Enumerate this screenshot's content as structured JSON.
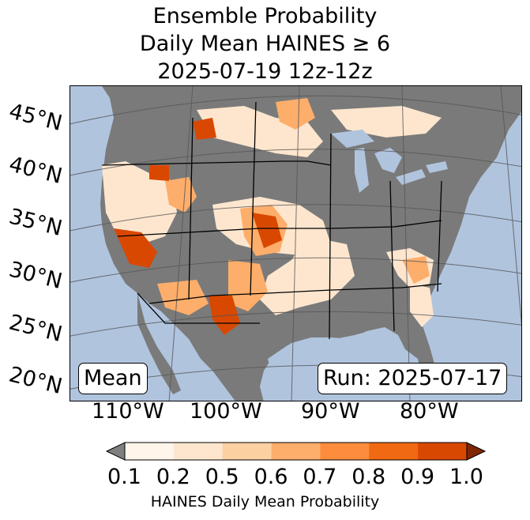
{
  "title": {
    "line1": "Ensemble Probability",
    "line2": "Daily Mean HAINES ≥ 6",
    "line3": "2025-07-19 12z-12z"
  },
  "map": {
    "lat_labels": [
      "45°N",
      "40°N",
      "35°N",
      "30°N",
      "25°N",
      "20°N"
    ],
    "lon_labels": [
      "110°W",
      "100°W",
      "90°W",
      "80°W"
    ],
    "colors": {
      "ocean": "#b0c4de",
      "no_data_land": "#7a7a7a",
      "border": "#000000"
    },
    "mean_label": "Mean",
    "run_label": "Run: 2025-07-17"
  },
  "colorbar": {
    "ticks": [
      "0.1",
      "0.2",
      "0.5",
      "0.6",
      "0.7",
      "0.8",
      "0.9",
      "1.0"
    ],
    "colors": [
      "#fff5eb",
      "#fee6ce",
      "#fdd0a2",
      "#fdae6b",
      "#fd8d3c",
      "#f16913",
      "#d94801",
      "#a63603"
    ],
    "under_color": "#7f7f7f",
    "over_color": "#7f2704",
    "label": "HAINES Daily Mean Probability"
  }
}
